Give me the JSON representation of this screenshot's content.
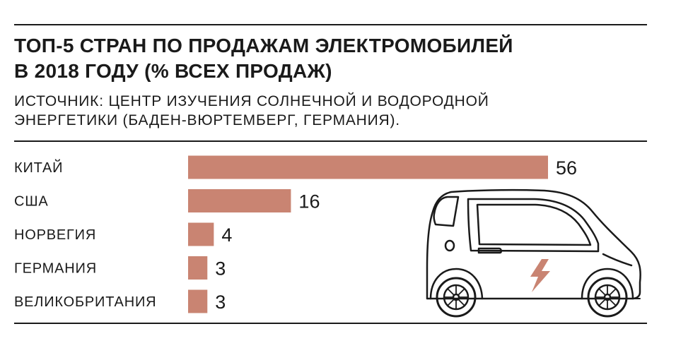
{
  "title_line1": "ТОП-5 СТРАН ПО ПРОДАЖАМ ЭЛЕКТРОМОБИЛЕЙ",
  "title_line2": "В 2018 ГОДУ (% ВСЕХ ПРОДАЖ)",
  "subtitle_line1": "ИСТОЧНИК:  ЦЕНТР ИЗУЧЕНИЯ СОЛНЕЧНОЙ И ВОДОРОДНОЙ",
  "subtitle_line2": "ЭНЕРГЕТИКИ (БАДЕН-ВЮРТЕМБЕРГ, ГЕРМАНИЯ).",
  "colors": {
    "bar": "#c98472",
    "text": "#1a1a1a",
    "car_accent": "#c98472"
  },
  "illustration": "electric-car-icon",
  "chart_data": {
    "type": "bar",
    "orientation": "horizontal",
    "categories": [
      "КИТАЙ",
      "США",
      "НОРВЕГИЯ",
      "ГЕРМАНИЯ",
      "ВЕЛИКОБРИТАНИЯ"
    ],
    "values": [
      56,
      16,
      4,
      3,
      3
    ],
    "xlim": [
      0,
      56
    ],
    "grid": false,
    "legend": "none"
  }
}
